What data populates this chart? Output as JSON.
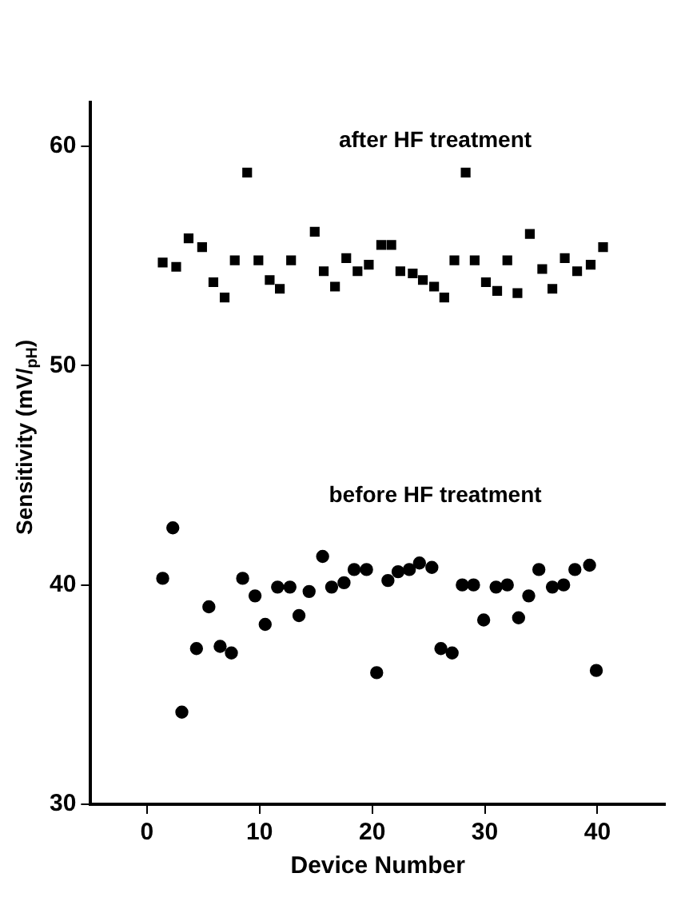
{
  "chart_data": {
    "type": "scatter",
    "xlabel": "Device Number",
    "ylabel": "Sensitivity (mV/$_{pH}$)",
    "xlim": [
      -5,
      46
    ],
    "ylim": [
      30,
      62
    ],
    "xticks": [
      0,
      10,
      20,
      30,
      40
    ],
    "yticks": [
      30,
      40,
      50,
      60
    ],
    "grid": false,
    "legend": false,
    "series": [
      {
        "name": "after HF treatment",
        "color": "#000000",
        "marker": "square",
        "x": [
          1.4,
          2.6,
          3.7,
          4.9,
          5.9,
          6.9,
          7.8,
          8.9,
          9.9,
          10.9,
          11.8,
          12.8,
          14.9,
          15.7,
          16.7,
          17.7,
          18.7,
          19.7,
          20.8,
          21.7,
          22.5,
          23.6,
          24.5,
          25.5,
          26.4,
          27.3,
          28.3,
          29.1,
          30.1,
          31.1,
          32.0,
          32.9,
          34.0,
          35.1,
          36.0,
          37.1,
          38.2,
          39.4,
          40.5
        ],
        "values": [
          54.7,
          54.5,
          55.8,
          55.4,
          53.8,
          53.1,
          54.8,
          58.8,
          54.8,
          53.9,
          53.5,
          54.8,
          56.1,
          54.3,
          53.6,
          54.9,
          54.3,
          54.6,
          55.5,
          55.5,
          54.3,
          54.2,
          53.9,
          53.6,
          53.1,
          54.8,
          58.8,
          54.8,
          53.8,
          53.4,
          54.8,
          53.3,
          56.0,
          54.4,
          53.5,
          54.9,
          54.3,
          54.6,
          55.4
        ]
      },
      {
        "name": "before HF treatment",
        "color": "#000000",
        "marker": "circle",
        "x": [
          1.4,
          2.3,
          3.1,
          4.4,
          5.5,
          6.5,
          7.5,
          8.5,
          9.6,
          10.5,
          11.6,
          12.7,
          13.5,
          14.4,
          15.6,
          16.4,
          17.5,
          18.4,
          19.5,
          20.4,
          21.4,
          22.3,
          23.3,
          24.2,
          25.3,
          26.1,
          27.1,
          28.0,
          29.0,
          29.9,
          31.0,
          32.0,
          33.0,
          33.9,
          34.8,
          36.0,
          37.0,
          38.0,
          39.3,
          39.9
        ],
        "values": [
          40.3,
          42.6,
          34.2,
          37.1,
          39.0,
          37.2,
          36.9,
          40.3,
          39.5,
          38.2,
          39.9,
          39.9,
          38.6,
          39.7,
          41.3,
          39.9,
          40.1,
          40.7,
          40.7,
          36.0,
          40.2,
          40.6,
          40.7,
          41.0,
          40.8,
          37.1,
          36.9,
          40.0,
          40.0,
          38.4,
          39.9,
          40.0,
          38.5,
          39.5,
          40.7,
          39.9,
          40.0,
          40.7,
          40.9,
          36.1
        ]
      }
    ]
  }
}
